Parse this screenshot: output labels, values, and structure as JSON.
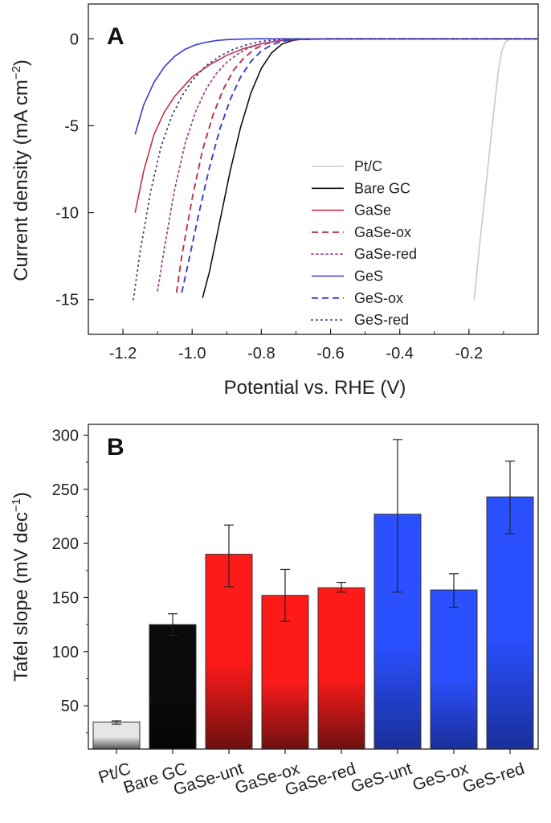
{
  "chart_data": [
    {
      "panel": "A",
      "type": "line",
      "xlabel": "Potential vs. RHE (V)",
      "ylabel_main": "Current density (mA cm",
      "ylabel_sup": "−2",
      "ylabel_tail": ")",
      "xlim": [
        -1.3,
        0
      ],
      "ylim": [
        -17,
        2
      ],
      "xticks": [
        -1.2,
        -1.0,
        -0.8,
        -0.6,
        -0.4,
        -0.2
      ],
      "xtick_labels": [
        "-1.2",
        "-1.0",
        "-0.8",
        "-0.6",
        "-0.4",
        "-0.2"
      ],
      "yticks": [
        0,
        -5,
        -10,
        -15
      ],
      "ytick_labels": [
        "0",
        "-5",
        "-10",
        "-15"
      ],
      "legend_position": "right",
      "series": [
        {
          "name": "Pt/C",
          "color": "#c8c8c8",
          "dash": "solid",
          "x": [
            -0.185,
            -0.17,
            -0.15,
            -0.13,
            -0.115,
            -0.105,
            -0.095,
            -0.085,
            -0.07,
            -0.04,
            0.0
          ],
          "y": [
            -15,
            -12,
            -8.3,
            -4.5,
            -1.8,
            -0.7,
            -0.2,
            -0.05,
            0,
            0,
            0
          ]
        },
        {
          "name": "Bare GC",
          "color": "#111111",
          "dash": "solid",
          "x": [
            -0.97,
            -0.95,
            -0.92,
            -0.89,
            -0.86,
            -0.83,
            -0.8,
            -0.77,
            -0.74,
            -0.71,
            -0.68,
            -0.6,
            -0.4,
            -0.2,
            0.0
          ],
          "y": [
            -14.9,
            -13.4,
            -10.5,
            -7.6,
            -5.1,
            -3.1,
            -1.7,
            -0.8,
            -0.3,
            -0.1,
            0,
            0,
            0,
            0,
            0
          ]
        },
        {
          "name": "GaSe",
          "color": "#c0304a",
          "dash": "solid",
          "x": [
            -1.165,
            -1.14,
            -1.11,
            -1.08,
            -1.05,
            -1.0,
            -0.95,
            -0.9,
            -0.85,
            -0.8,
            -0.75,
            -0.7,
            -0.6,
            0.0
          ],
          "y": [
            -10,
            -7.6,
            -5.5,
            -4.2,
            -3.3,
            -2.2,
            -1.5,
            -0.95,
            -0.55,
            -0.28,
            -0.12,
            -0.05,
            0,
            0
          ]
        },
        {
          "name": "GaSe-ox",
          "color": "#c0304a",
          "dash": "8,5",
          "x": [
            -1.045,
            -1.03,
            -1.0,
            -0.97,
            -0.94,
            -0.91,
            -0.88,
            -0.85,
            -0.82,
            -0.79,
            -0.76,
            -0.73,
            -0.7,
            -0.6,
            0.0
          ],
          "y": [
            -14.6,
            -12.5,
            -9.2,
            -6.4,
            -4.4,
            -2.9,
            -1.8,
            -1.1,
            -0.6,
            -0.3,
            -0.15,
            -0.07,
            -0.02,
            0,
            0
          ]
        },
        {
          "name": "GaSe-red",
          "color": "#a05098",
          "dash": "2,4",
          "x": [
            -1.1,
            -1.08,
            -1.05,
            -1.02,
            -0.99,
            -0.96,
            -0.93,
            -0.9,
            -0.87,
            -0.84,
            -0.8,
            -0.76,
            -0.72,
            -0.6,
            0.0
          ],
          "y": [
            -14.5,
            -12.0,
            -8.6,
            -6.0,
            -4.2,
            -2.9,
            -2.0,
            -1.35,
            -0.9,
            -0.55,
            -0.3,
            -0.13,
            -0.04,
            0,
            0
          ]
        },
        {
          "name": "GeS",
          "color": "#3a3ad0",
          "dash": "solid",
          "x": [
            -1.165,
            -1.14,
            -1.11,
            -1.08,
            -1.05,
            -1.02,
            -0.99,
            -0.96,
            -0.93,
            -0.9,
            -0.86,
            -0.82,
            -0.78,
            -0.74,
            -0.7,
            0.0
          ],
          "y": [
            -5.5,
            -3.8,
            -2.5,
            -1.6,
            -1.0,
            -0.6,
            -0.35,
            -0.2,
            -0.1,
            -0.05,
            -0.02,
            0,
            0,
            0,
            0,
            0
          ]
        },
        {
          "name": "GeS-ox",
          "color": "#3a3ad0",
          "dash": "8,5",
          "x": [
            -1.03,
            -1.01,
            -0.98,
            -0.95,
            -0.92,
            -0.89,
            -0.86,
            -0.83,
            -0.8,
            -0.77,
            -0.74,
            -0.71,
            -0.6,
            0.0
          ],
          "y": [
            -14.6,
            -12.8,
            -10.0,
            -7.4,
            -5.2,
            -3.5,
            -2.2,
            -1.3,
            -0.7,
            -0.35,
            -0.15,
            -0.05,
            0,
            0
          ]
        },
        {
          "name": "GeS-red",
          "color": "#404088",
          "dash": "1,5",
          "x": [
            -1.17,
            -1.15,
            -1.12,
            -1.09,
            -1.06,
            -1.03,
            -1.0,
            -0.96,
            -0.92,
            -0.88,
            -0.84,
            -0.8,
            -0.76,
            -0.72,
            -0.6,
            0.0
          ],
          "y": [
            -15.0,
            -12.2,
            -8.8,
            -6.2,
            -4.5,
            -3.3,
            -2.4,
            -1.55,
            -1.0,
            -0.6,
            -0.33,
            -0.15,
            -0.06,
            -0.02,
            0,
            0
          ]
        }
      ]
    },
    {
      "panel": "B",
      "type": "bar",
      "ylabel_main": "Tafel slope (mV dec",
      "ylabel_sup": "−1",
      "ylabel_tail": ")",
      "ylim": [
        10,
        310
      ],
      "yticks": [
        50,
        100,
        150,
        200,
        250,
        300
      ],
      "ytick_labels": [
        "50",
        "100",
        "150",
        "200",
        "250",
        "300"
      ],
      "categories": [
        "Pt/C",
        "Bare GC",
        "GaSe-unt",
        "GaSe-ox",
        "GaSe-red",
        "GeS-unt",
        "GeS-ox",
        "GeS-red"
      ],
      "values": [
        35,
        125,
        190,
        152,
        159,
        227,
        157,
        243
      ],
      "error_low": [
        33,
        115,
        160,
        128,
        155,
        155,
        141,
        209
      ],
      "error_high": [
        36,
        135,
        217,
        176,
        164,
        296,
        172,
        276
      ],
      "bar_colors": [
        {
          "top": "#e6e6e6",
          "bottom": "#555555"
        },
        {
          "top": "#0a0a0a",
          "bottom": "#050505"
        },
        {
          "top": "#ff1a1a",
          "bottom": "#6e1010"
        },
        {
          "top": "#ff1a1a",
          "bottom": "#6e1010"
        },
        {
          "top": "#ff1a1a",
          "bottom": "#6e1010"
        },
        {
          "top": "#2a50ff",
          "bottom": "#1a2f9a"
        },
        {
          "top": "#2a50ff",
          "bottom": "#1a2f9a"
        },
        {
          "top": "#2a50ff",
          "bottom": "#1a2f9a"
        }
      ]
    }
  ],
  "panel_letters": {
    "a": "A",
    "b": "B"
  }
}
